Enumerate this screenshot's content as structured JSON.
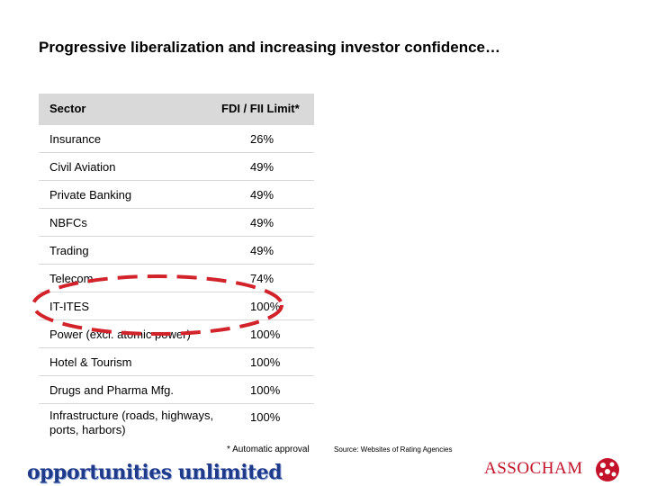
{
  "title": "Progressive liberalization and increasing investor confidence…",
  "table": {
    "headers": [
      "Sector",
      "FDI / FII Limit*"
    ],
    "rows": [
      {
        "sector": "Insurance",
        "limit": "26%"
      },
      {
        "sector": "Civil Aviation",
        "limit": "49%"
      },
      {
        "sector": "Private Banking",
        "limit": "49%"
      },
      {
        "sector": "NBFCs",
        "limit": "49%"
      },
      {
        "sector": "Trading",
        "limit": "49%"
      },
      {
        "sector": "Telecom",
        "limit": "74%"
      },
      {
        "sector": "IT-ITES",
        "limit": "100%"
      },
      {
        "sector": "Power (excl. atomic power)",
        "limit": "100%"
      },
      {
        "sector": "Hotel & Tourism",
        "limit": "100%"
      },
      {
        "sector": "Drugs and Pharma Mfg.",
        "limit": "100%"
      },
      {
        "sector": "Infrastructure (roads, highways, ports, harbors)",
        "limit": "100%"
      }
    ]
  },
  "footnote": "* Automatic approval",
  "source": "Source: Websites of Rating Agencies",
  "tagline": "opportunities unlimited",
  "logo": "ASSOCHAM",
  "colors": {
    "highlight_oval": "#d2232a",
    "header_fill": "#d9d9d9",
    "logo": "#c3132b",
    "tagline": "#1f3a8a"
  }
}
